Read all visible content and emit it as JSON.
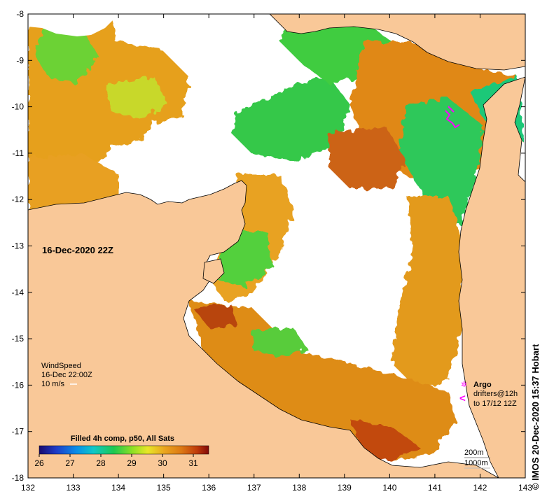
{
  "map": {
    "date_label": "16-Dec-2020 22Z",
    "credit": "© IMOS 20-Dec-2020 15:37 Hobart",
    "x_ticks": [
      "132",
      "133",
      "134",
      "135",
      "136",
      "137",
      "138",
      "139",
      "140",
      "141",
      "142",
      "143"
    ],
    "y_ticks": [
      "-8",
      "-9",
      "-10",
      "-11",
      "-12",
      "-13",
      "-14",
      "-15",
      "-16",
      "-17",
      "-18"
    ],
    "wind": {
      "title": "WindSpeed",
      "time": "16-Dec 22:00Z",
      "ref": "10 m/s"
    },
    "legend": {
      "argo_symbol": "✲",
      "argo_label": "Argo",
      "drifter_symbol": "<",
      "drifter_line1": "drifters@12h",
      "drifter_line2": "to 17/12 12Z"
    },
    "depth": {
      "line1": "200m",
      "line2": "1000m"
    },
    "colorbar": {
      "title": "Filled 4h comp, p50, All Sats",
      "ticks": [
        "26",
        "27",
        "28",
        "29",
        "30",
        "31"
      ],
      "min": 26,
      "max": 31.5
    },
    "colors": {
      "land": "#f9c898",
      "ocean_no_data": "#ffffff",
      "argo_marker": "#ff00ff",
      "sst_scale": [
        "#2a0a6e",
        "#1e3cc8",
        "#0a8ee8",
        "#0fc8c8",
        "#1ec850",
        "#8ee024",
        "#e8e628",
        "#eaa41e",
        "#dc7814",
        "#c03c0a",
        "#820a0a"
      ]
    }
  }
}
